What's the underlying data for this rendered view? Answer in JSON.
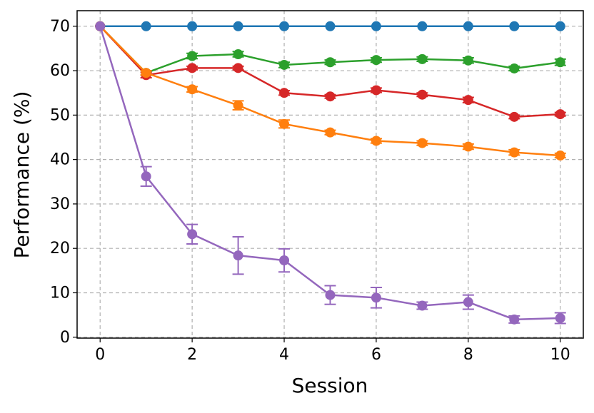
{
  "chart_data": {
    "type": "line",
    "x_label": "Session",
    "y_label": "Performance (%)",
    "x": [
      0,
      1,
      2,
      3,
      4,
      5,
      6,
      7,
      8,
      9,
      10
    ],
    "series": [
      {
        "color": "#1f77b4",
        "values": [
          70,
          70,
          70,
          70,
          70,
          70,
          70,
          70,
          70,
          70,
          70
        ],
        "errors": [
          0,
          0,
          0,
          0,
          0,
          0,
          0,
          0,
          0,
          0,
          0
        ]
      },
      {
        "color": "#2ca02c",
        "values": [
          70,
          59.5,
          63.3,
          63.7,
          61.3,
          61.9,
          62.4,
          62.6,
          62.3,
          60.5,
          61.9
        ],
        "errors": [
          0,
          0.5,
          0.6,
          0.6,
          0.6,
          0.5,
          0.5,
          0.5,
          0.6,
          0.5,
          0.7
        ]
      },
      {
        "color": "#d62728",
        "values": [
          70,
          59.0,
          60.6,
          60.6,
          55.0,
          54.2,
          55.6,
          54.6,
          53.4,
          49.6,
          50.2
        ],
        "errors": [
          0,
          0.6,
          0.4,
          0.4,
          0.5,
          0.4,
          0.5,
          0.4,
          0.6,
          0.4,
          0.4
        ]
      },
      {
        "color": "#ff7f0e",
        "values": [
          70,
          59.5,
          55.8,
          52.2,
          48.0,
          46.1,
          44.2,
          43.7,
          42.9,
          41.6,
          40.9
        ],
        "errors": [
          0,
          0.5,
          0.6,
          1.0,
          0.9,
          0.5,
          0.5,
          0.5,
          0.6,
          0.6,
          0.5
        ]
      },
      {
        "color": "#9467bd",
        "values": [
          70,
          36.2,
          23.2,
          18.4,
          17.3,
          9.5,
          8.9,
          7.1,
          7.9,
          4.0,
          4.3
        ],
        "errors": [
          0,
          2.2,
          2.2,
          4.2,
          2.6,
          2.1,
          2.3,
          0.8,
          1.6,
          0.8,
          1.2
        ]
      }
    ],
    "xlim": [
      -0.5,
      10.5
    ],
    "ylim": [
      -0.2,
      73.5
    ],
    "xticks": [
      0,
      2,
      4,
      6,
      8,
      10
    ],
    "yticks": [
      0,
      10,
      20,
      30,
      40,
      50,
      60,
      70
    ],
    "grid": true
  }
}
